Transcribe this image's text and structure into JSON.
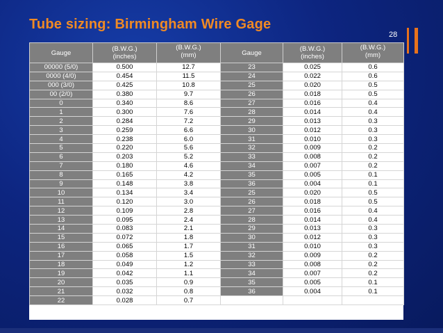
{
  "slide": {
    "title": "Tube sizing: Birmingham Wire Gage",
    "page_number": "28"
  },
  "table": {
    "headers": [
      [
        "Gauge"
      ],
      [
        "(B.W.G.)",
        "(inches)"
      ],
      [
        "(B.W.G.)",
        "(mm)"
      ],
      [
        "Gauge"
      ],
      [
        "(B.W.G.)",
        "(inches)"
      ],
      [
        "(B.W.G.)",
        "(mm)"
      ]
    ],
    "rows": [
      [
        "00000 (5/0)",
        "0.500",
        "12.7",
        "23",
        "0.025",
        "0.6"
      ],
      [
        "0000 (4/0)",
        "0.454",
        "11.5",
        "24",
        "0.022",
        "0.6"
      ],
      [
        "000 (3/0)",
        "0.425",
        "10.8",
        "25",
        "0.020",
        "0.5"
      ],
      [
        "00 (2/0)",
        "0.380",
        "9.7",
        "26",
        "0.018",
        "0.5"
      ],
      [
        "0",
        "0.340",
        "8.6",
        "27",
        "0.016",
        "0.4"
      ],
      [
        "1",
        "0.300",
        "7.6",
        "28",
        "0.014",
        "0.4"
      ],
      [
        "2",
        "0.284",
        "7.2",
        "29",
        "0.013",
        "0.3"
      ],
      [
        "3",
        "0.259",
        "6.6",
        "30",
        "0.012",
        "0.3"
      ],
      [
        "4",
        "0.238",
        "6.0",
        "31",
        "0.010",
        "0.3"
      ],
      [
        "5",
        "0.220",
        "5.6",
        "32",
        "0.009",
        "0.2"
      ],
      [
        "6",
        "0.203",
        "5.2",
        "33",
        "0.008",
        "0.2"
      ],
      [
        "7",
        "0.180",
        "4.6",
        "34",
        "0.007",
        "0.2"
      ],
      [
        "8",
        "0.165",
        "4.2",
        "35",
        "0.005",
        "0.1"
      ],
      [
        "9",
        "0.148",
        "3.8",
        "36",
        "0.004",
        "0.1"
      ],
      [
        "10",
        "0.134",
        "3.4",
        "25",
        "0.020",
        "0.5"
      ],
      [
        "11",
        "0.120",
        "3.0",
        "26",
        "0.018",
        "0.5"
      ],
      [
        "12",
        "0.109",
        "2.8",
        "27",
        "0.016",
        "0.4"
      ],
      [
        "13",
        "0.095",
        "2.4",
        "28",
        "0.014",
        "0.4"
      ],
      [
        "14",
        "0.083",
        "2.1",
        "29",
        "0.013",
        "0.3"
      ],
      [
        "15",
        "0.072",
        "1.8",
        "30",
        "0.012",
        "0.3"
      ],
      [
        "16",
        "0.065",
        "1.7",
        "31",
        "0.010",
        "0.3"
      ],
      [
        "17",
        "0.058",
        "1.5",
        "32",
        "0.009",
        "0.2"
      ],
      [
        "18",
        "0.049",
        "1.2",
        "33",
        "0.008",
        "0.2"
      ],
      [
        "19",
        "0.042",
        "1.1",
        "34",
        "0.007",
        "0.2"
      ],
      [
        "20",
        "0.035",
        "0.9",
        "35",
        "0.005",
        "0.1"
      ],
      [
        "21",
        "0.032",
        "0.8",
        "36",
        "0.004",
        "0.1"
      ],
      [
        "22",
        "0.028",
        "0.7",
        "",
        "",
        ""
      ]
    ]
  },
  "colors": {
    "title": "#f08a24",
    "background": "#0d2580",
    "header_fill": "#7f7f7f",
    "accent_bars": "#e8721c"
  }
}
